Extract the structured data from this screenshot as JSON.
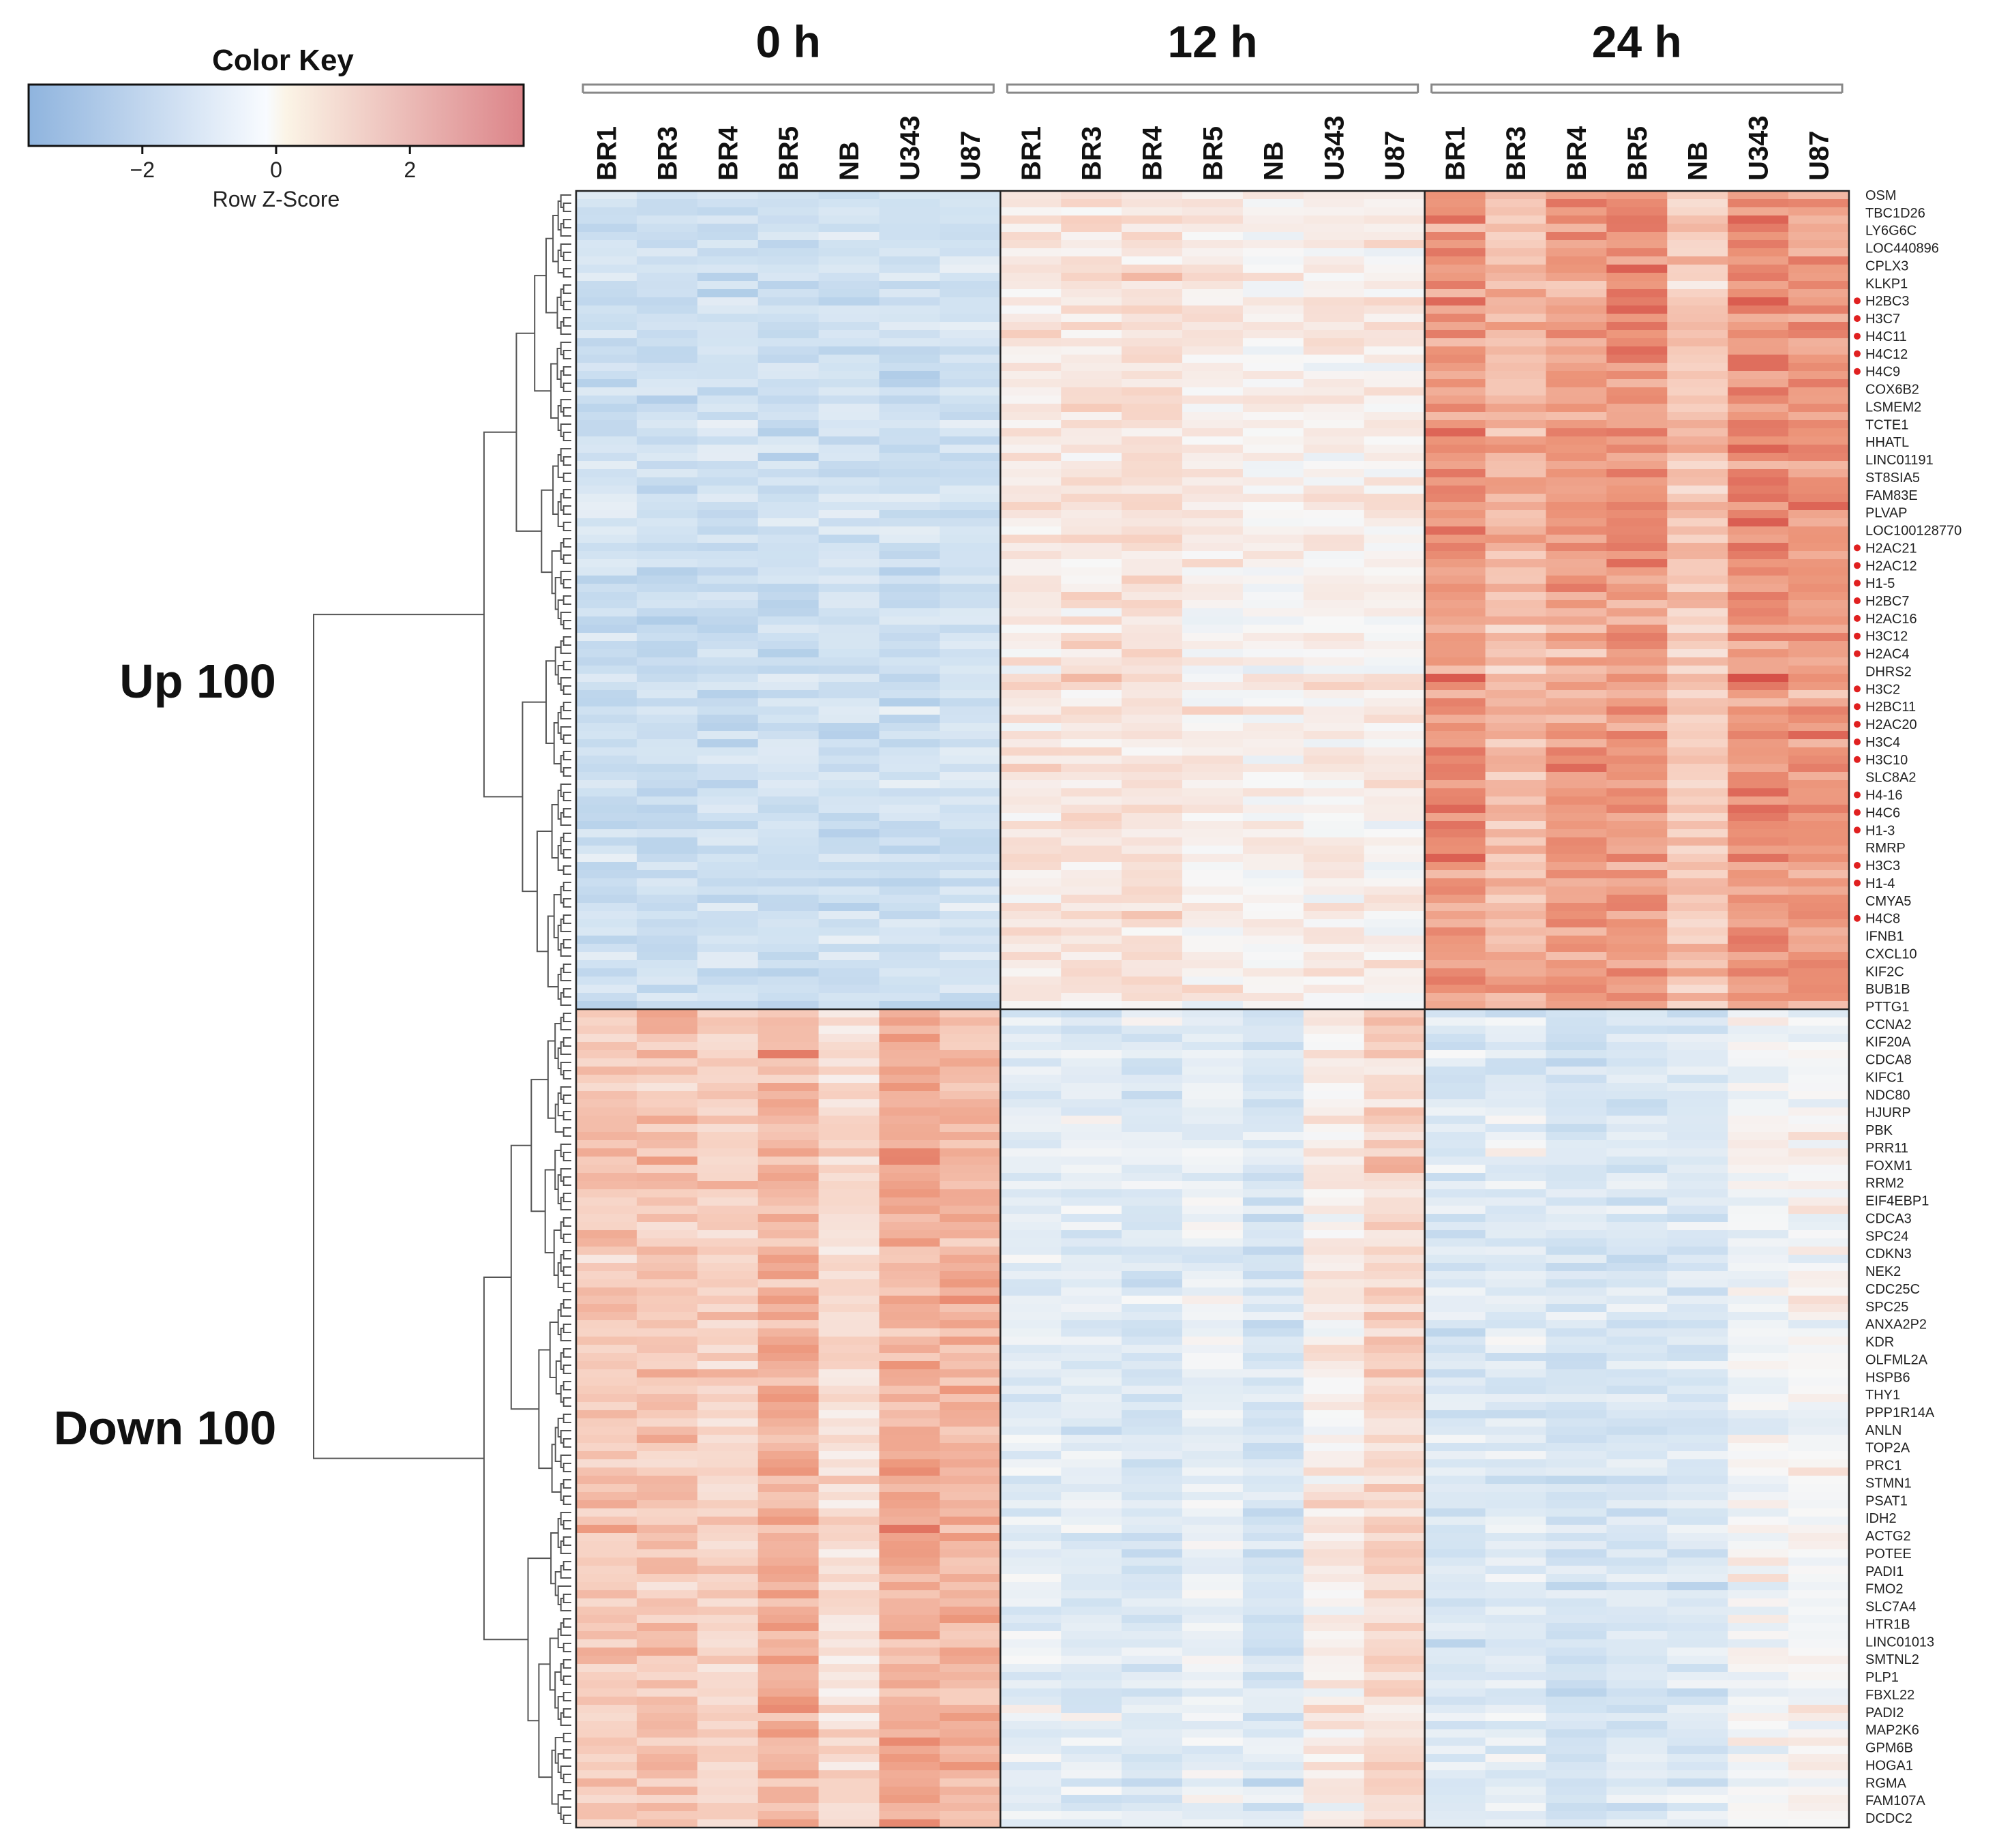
{
  "chart_data": {
    "type": "heatmap",
    "title": "",
    "color_key": {
      "title": "Color Key",
      "label": "Row Z-Score",
      "ticks": [
        -2,
        0,
        2
      ],
      "tick_labels": [
        "−2",
        "0",
        "2"
      ],
      "range": [
        -3.7,
        3.7
      ],
      "colors": {
        "low": "#8fb4de",
        "mid": "#f8fbff",
        "mid_warm": "#fbf4e6",
        "high": "#dc8489"
      }
    },
    "time_points": [
      "0 h",
      "12 h",
      "24 h"
    ],
    "samples": [
      "BR1",
      "BR3",
      "BR4",
      "BR5",
      "NB",
      "U343",
      "U87"
    ],
    "groups": [
      {
        "name": "Up 100",
        "rows": 100
      },
      {
        "name": "Down 100",
        "rows": 100
      }
    ],
    "value_pattern": {
      "Up 100": {
        "0 h": -1.1,
        "12 h": 0.3,
        "24 h": 1.3
      },
      "Down 100": {
        "0 h": 0.9,
        "12 h": -0.4,
        "24 h": -0.5
      }
    },
    "sample_offsets": {
      "Up 100": {
        "0 h": [
          0,
          -0.1,
          0,
          0,
          0,
          0,
          0.1
        ],
        "12 h": [
          0.1,
          0.2,
          0.3,
          0,
          -0.2,
          0,
          -0.1
        ],
        "24 h": [
          0.6,
          0.1,
          0.5,
          0.7,
          -0.2,
          0.7,
          0.6
        ]
      },
      "Down 100": {
        "0 h": [
          0.2,
          0.3,
          0,
          0.6,
          -0.2,
          0.7,
          0.6
        ],
        "12 h": [
          -0.1,
          -0.2,
          -0.3,
          0.1,
          -0.4,
          0.8,
          1.2
        ],
        "24 h": [
          -0.2,
          -0.1,
          -0.4,
          -0.3,
          -0.2,
          0.4,
          0.5
        ]
      }
    },
    "gene_labels": [
      {
        "name": "OSM",
        "histone": false
      },
      {
        "name": "TBC1D26",
        "histone": false
      },
      {
        "name": "LY6G6C",
        "histone": false
      },
      {
        "name": "LOC440896",
        "histone": false
      },
      {
        "name": "CPLX3",
        "histone": false
      },
      {
        "name": "KLKP1",
        "histone": false
      },
      {
        "name": "H2BC3",
        "histone": true
      },
      {
        "name": "H3C7",
        "histone": true
      },
      {
        "name": "H4C11",
        "histone": true
      },
      {
        "name": "H4C12",
        "histone": true
      },
      {
        "name": "H4C9",
        "histone": true
      },
      {
        "name": "COX6B2",
        "histone": false
      },
      {
        "name": "LSMEM2",
        "histone": false
      },
      {
        "name": "TCTE1",
        "histone": false
      },
      {
        "name": "HHATL",
        "histone": false
      },
      {
        "name": "LINC01191",
        "histone": false
      },
      {
        "name": "ST8SIA5",
        "histone": false
      },
      {
        "name": "FAM83E",
        "histone": false
      },
      {
        "name": "PLVAP",
        "histone": false
      },
      {
        "name": "LOC100128770",
        "histone": false
      },
      {
        "name": "H2AC21",
        "histone": true
      },
      {
        "name": "H2AC12",
        "histone": true
      },
      {
        "name": "H1-5",
        "histone": true
      },
      {
        "name": "H2BC7",
        "histone": true
      },
      {
        "name": "H2AC16",
        "histone": true
      },
      {
        "name": "H3C12",
        "histone": true
      },
      {
        "name": "H2AC4",
        "histone": true
      },
      {
        "name": "DHRS2",
        "histone": false
      },
      {
        "name": "H3C2",
        "histone": true
      },
      {
        "name": "H2BC11",
        "histone": true
      },
      {
        "name": "H2AC20",
        "histone": true
      },
      {
        "name": "H3C4",
        "histone": true
      },
      {
        "name": "H3C10",
        "histone": true
      },
      {
        "name": "SLC8A2",
        "histone": false
      },
      {
        "name": "H4-16",
        "histone": true
      },
      {
        "name": "H4C6",
        "histone": true
      },
      {
        "name": "H1-3",
        "histone": true
      },
      {
        "name": "RMRP",
        "histone": false
      },
      {
        "name": "H3C3",
        "histone": true
      },
      {
        "name": "H1-4",
        "histone": true
      },
      {
        "name": "CMYA5",
        "histone": false
      },
      {
        "name": "H4C8",
        "histone": true
      },
      {
        "name": "IFNB1",
        "histone": false
      },
      {
        "name": "CXCL10",
        "histone": false
      },
      {
        "name": "KIF2C",
        "histone": false
      },
      {
        "name": "BUB1B",
        "histone": false
      },
      {
        "name": "PTTG1",
        "histone": false
      },
      {
        "name": "CCNA2",
        "histone": false
      },
      {
        "name": "KIF20A",
        "histone": false
      },
      {
        "name": "CDCA8",
        "histone": false
      },
      {
        "name": "KIFC1",
        "histone": false
      },
      {
        "name": "NDC80",
        "histone": false
      },
      {
        "name": "HJURP",
        "histone": false
      },
      {
        "name": "PBK",
        "histone": false
      },
      {
        "name": "PRR11",
        "histone": false
      },
      {
        "name": "FOXM1",
        "histone": false
      },
      {
        "name": "RRM2",
        "histone": false
      },
      {
        "name": "EIF4EBP1",
        "histone": false
      },
      {
        "name": "CDCA3",
        "histone": false
      },
      {
        "name": "SPC24",
        "histone": false
      },
      {
        "name": "CDKN3",
        "histone": false
      },
      {
        "name": "NEK2",
        "histone": false
      },
      {
        "name": "CDC25C",
        "histone": false
      },
      {
        "name": "SPC25",
        "histone": false
      },
      {
        "name": "ANXA2P2",
        "histone": false
      },
      {
        "name": "KDR",
        "histone": false
      },
      {
        "name": "OLFML2A",
        "histone": false
      },
      {
        "name": "HSPB6",
        "histone": false
      },
      {
        "name": "THY1",
        "histone": false
      },
      {
        "name": "PPP1R14A",
        "histone": false
      },
      {
        "name": "ANLN",
        "histone": false
      },
      {
        "name": "TOP2A",
        "histone": false
      },
      {
        "name": "PRC1",
        "histone": false
      },
      {
        "name": "STMN1",
        "histone": false
      },
      {
        "name": "PSAT1",
        "histone": false
      },
      {
        "name": "IDH2",
        "histone": false
      },
      {
        "name": "ACTG2",
        "histone": false
      },
      {
        "name": "POTEE",
        "histone": false
      },
      {
        "name": "PADI1",
        "histone": false
      },
      {
        "name": "FMO2",
        "histone": false
      },
      {
        "name": "SLC7A4",
        "histone": false
      },
      {
        "name": "HTR1B",
        "histone": false
      },
      {
        "name": "LINC01013",
        "histone": false
      },
      {
        "name": "SMTNL2",
        "histone": false
      },
      {
        "name": "PLP1",
        "histone": false
      },
      {
        "name": "FBXL22",
        "histone": false
      },
      {
        "name": "PADI2",
        "histone": false
      },
      {
        "name": "MAP2K6",
        "histone": false
      },
      {
        "name": "GPM6B",
        "histone": false
      },
      {
        "name": "HOGA1",
        "histone": false
      },
      {
        "name": "RGMA",
        "histone": false
      },
      {
        "name": "FAM107A",
        "histone": false
      },
      {
        "name": "DCDC2",
        "histone": false
      }
    ],
    "highlight_color": "#e02020",
    "grid_color": "#222222"
  }
}
